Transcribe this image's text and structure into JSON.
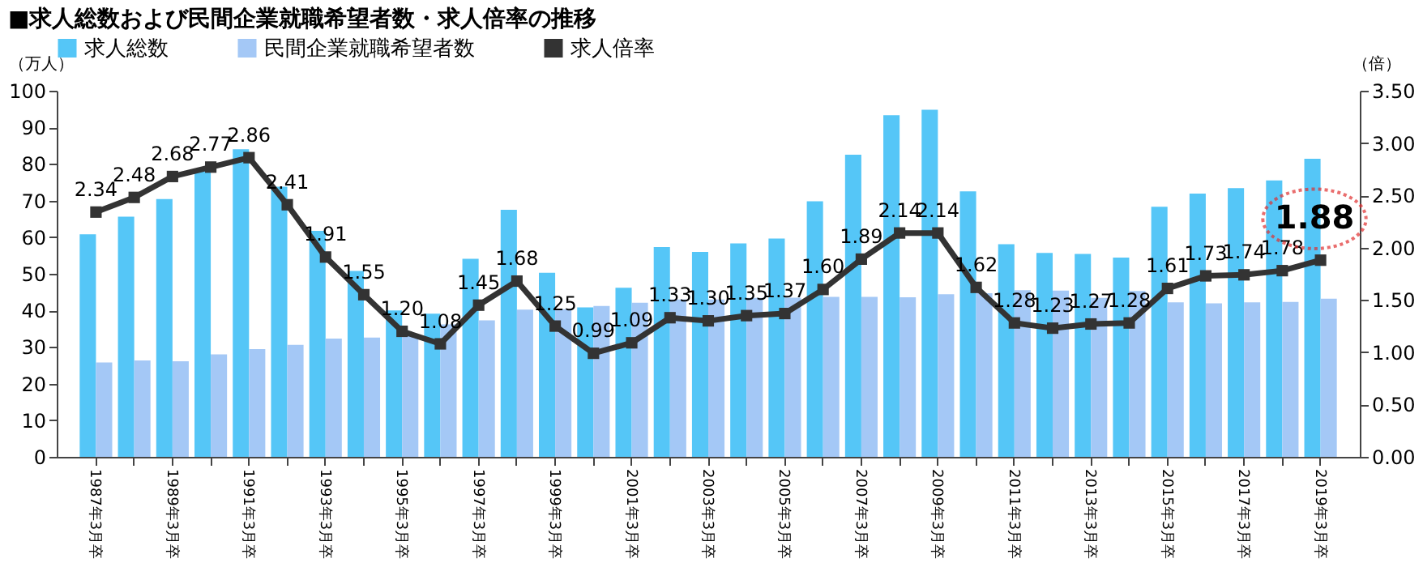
{
  "chart_data": {
    "type": "bar",
    "title": "■求人総数および民間企業就職希望者数・求人倍率の推移",
    "ylabel": "（万人）",
    "y2label": "（倍）",
    "categories": [
      "1987年3月卒",
      null,
      "1989年3月卒",
      null,
      "1991年3月卒",
      null,
      "1993年3月卒",
      null,
      "1995年3月卒",
      null,
      "1997年3月卒",
      null,
      "1999年3月卒",
      null,
      "2001年3月卒",
      null,
      "2003年3月卒",
      null,
      "2005年3月卒",
      null,
      "2007年3月卒",
      null,
      "2009年3月卒",
      null,
      "2011年3月卒",
      null,
      "2013年3月卒",
      null,
      "2015年3月卒",
      null,
      "2017年3月卒",
      null,
      "2019年3月卒"
    ],
    "series": [
      {
        "name": "求人総数",
        "color": "#55c6f7",
        "type": "bar",
        "values": [
          60.8,
          65.6,
          70.4,
          77.9,
          84.0,
          73.8,
          61.7,
          50.8,
          40.0,
          39.1,
          54.1,
          67.5,
          50.3,
          40.8,
          46.2,
          57.3,
          56.0,
          58.3,
          59.6,
          69.8,
          82.5,
          93.3,
          94.8,
          72.5,
          58.1,
          55.7,
          55.4,
          54.4,
          68.3,
          71.9,
          73.4,
          75.5,
          81.4
        ]
      },
      {
        "name": "民間企業就職希望者数",
        "color": "#a4c8f6",
        "type": "bar",
        "values": [
          25.8,
          26.3,
          26.1,
          28.0,
          29.4,
          30.6,
          32.3,
          32.6,
          33.2,
          36.2,
          37.3,
          40.2,
          40.3,
          41.2,
          42.1,
          43.0,
          43.0,
          43.4,
          43.5,
          43.7,
          43.7,
          43.6,
          44.4,
          44.7,
          45.5,
          45.4,
          43.4,
          45.3,
          42.2,
          41.9,
          42.2,
          42.3,
          43.2
        ]
      },
      {
        "name": "求人倍率",
        "color": "#333333",
        "type": "line",
        "axis": "y2",
        "marker": "square",
        "line_style": "solid",
        "values": [
          2.34,
          2.48,
          2.68,
          2.77,
          2.86,
          2.41,
          1.91,
          1.55,
          1.2,
          1.08,
          1.45,
          1.68,
          1.25,
          0.99,
          1.09,
          1.33,
          1.3,
          1.35,
          1.37,
          1.6,
          1.89,
          2.14,
          2.14,
          1.62,
          1.28,
          1.23,
          1.27,
          1.28,
          1.61,
          1.73,
          1.74,
          1.78,
          1.88
        ],
        "value_labels": [
          "2.34",
          "2.48",
          "2.68",
          "2.77",
          "2.86",
          "2.41",
          "1.91",
          "1.55",
          "1.20",
          "1.08",
          "1.45",
          "1.68",
          "1.25",
          "0.99",
          "1.09",
          "1.33",
          "1.30",
          "1.35",
          "1.37",
          "1.60",
          "1.89",
          "2.14",
          "2.14",
          "1.62",
          "1.28",
          "1.23",
          "1.27",
          "1.28",
          "1.61",
          "1.73",
          "1.74",
          "1.78",
          null
        ]
      }
    ],
    "annotations": [
      "1.88"
    ],
    "ylim": [
      0,
      100
    ],
    "yticks": [
      0,
      10,
      20,
      30,
      40,
      50,
      60,
      70,
      80,
      90,
      100
    ],
    "y2lim": [
      0,
      3.5
    ],
    "y2ticks": [
      {
        "value": 0,
        "label": "0.00"
      },
      {
        "value": 0.5,
        "label": "0.50"
      },
      {
        "value": 1,
        "label": "1.00"
      },
      {
        "value": 1.5,
        "label": "1.50"
      },
      {
        "value": 2,
        "label": "2.00"
      },
      {
        "value": 2.5,
        "label": "2.50"
      },
      {
        "value": 3,
        "label": "3.00"
      },
      {
        "value": 3.5,
        "label": "3.50"
      }
    ],
    "legend": "top",
    "grid": false
  }
}
